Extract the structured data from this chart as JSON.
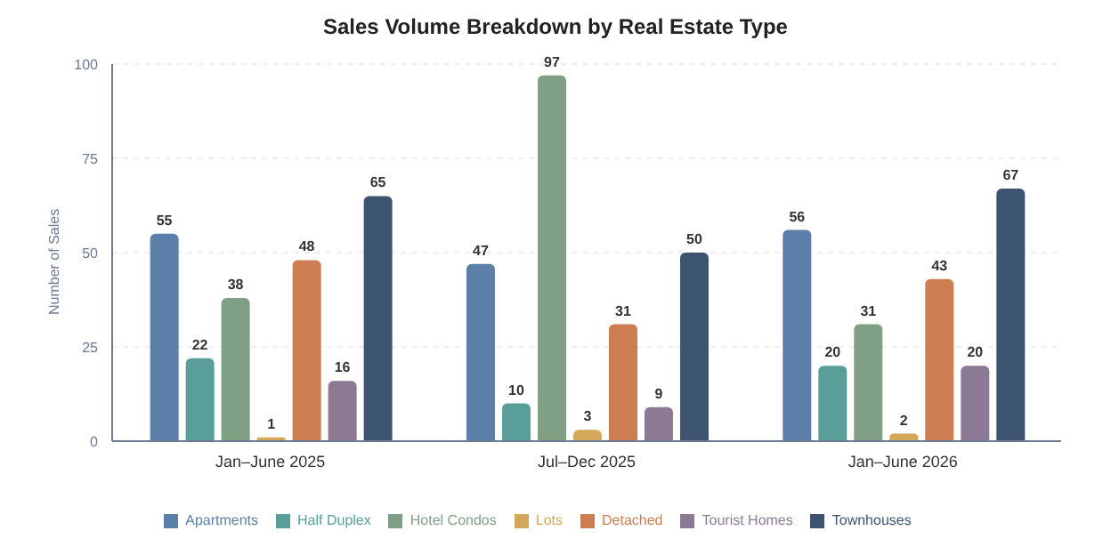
{
  "chart_data": {
    "type": "bar",
    "title": "Sales Volume Breakdown by Real Estate Type",
    "ylabel": "Number of Sales",
    "categories": [
      "Jan–June 2025",
      "Jul–Dec 2025",
      "Jan–June 2026"
    ],
    "series": [
      {
        "name": "Apartments",
        "color": "#5b7fa8",
        "values": [
          55,
          47,
          56
        ]
      },
      {
        "name": "Half Duplex",
        "color": "#5a9e9a",
        "values": [
          22,
          10,
          20
        ]
      },
      {
        "name": "Hotel Condos",
        "color": "#7fa084",
        "values": [
          38,
          97,
          31
        ]
      },
      {
        "name": "Lots",
        "color": "#d4a85a",
        "values": [
          1,
          3,
          2
        ]
      },
      {
        "name": "Detached",
        "color": "#cc7d52",
        "values": [
          48,
          31,
          43
        ]
      },
      {
        "name": "Tourist Homes",
        "color": "#8c7a95",
        "values": [
          16,
          9,
          20
        ]
      },
      {
        "name": "Townhouses",
        "color": "#3d5470",
        "values": [
          65,
          50,
          67
        ]
      }
    ],
    "ylim": [
      0,
      100
    ],
    "yticks": [
      0,
      25,
      50,
      75,
      100
    ],
    "grid": "y",
    "legend": "bottom",
    "data_labels": true
  }
}
